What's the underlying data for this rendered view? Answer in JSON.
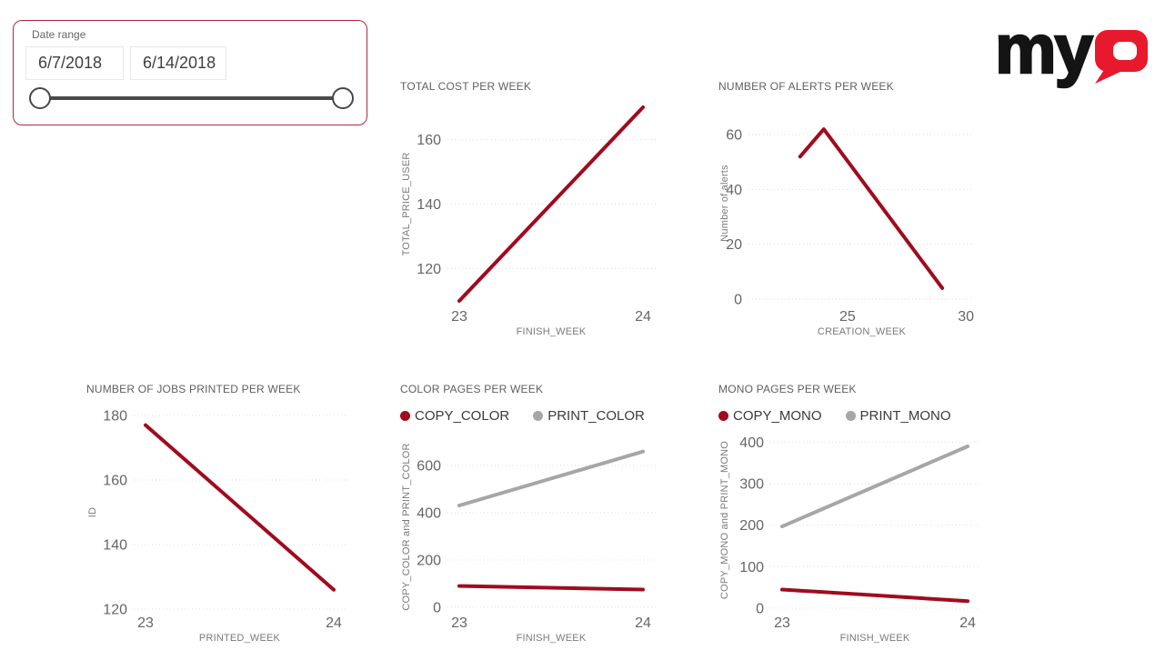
{
  "slicer": {
    "label": "Date range",
    "start_date": "6/7/2018",
    "end_date": "6/14/2018"
  },
  "logo": {
    "text": "my",
    "q": "Q"
  },
  "colors": {
    "accent_red": "#A00B1E",
    "series_gray": "#A6A6A6",
    "logo_red": "#E8192C",
    "logo_black": "#141414",
    "selection_border": "#B3293A",
    "gridline": "#DBDBDB",
    "tick_text": "#666666"
  },
  "chart_data": [
    {
      "id": "total-cost-per-week",
      "type": "line",
      "title": "TOTAL COST PER WEEK",
      "xlabel": "FINISH_WEEK",
      "ylabel": "TOTAL_PRICE_USER",
      "xlim": [
        23,
        24
      ],
      "ylim": [
        110,
        170
      ],
      "x_ticks": [
        23,
        24
      ],
      "y_ticks": [
        120,
        140,
        160
      ],
      "grid": "horizontal-dotted",
      "legend_position": null,
      "series": [
        {
          "name": "TOTAL_PRICE_USER",
          "color": "#A00B1E",
          "points": [
            [
              23,
              110
            ],
            [
              24,
              170
            ]
          ]
        }
      ]
    },
    {
      "id": "number-of-alerts-per-week",
      "type": "line",
      "title": "NUMBER OF ALERTS PER WEEK",
      "xlabel": "CREATION_WEEK",
      "ylabel": "Number of alerts",
      "xlim": [
        20.9,
        30.3
      ],
      "ylim": [
        0,
        70
      ],
      "x_ticks": [
        25,
        30
      ],
      "y_ticks": [
        0,
        20,
        40,
        60
      ],
      "grid": "horizontal-dotted",
      "legend_position": null,
      "series": [
        {
          "name": "Number of alerts",
          "color": "#A00B1E",
          "points": [
            [
              23,
              52
            ],
            [
              24,
              62
            ],
            [
              29,
              4
            ]
          ]
        }
      ]
    },
    {
      "id": "number-of-jobs-printed-per-week",
      "type": "line",
      "title": "NUMBER OF JOBS PRINTED PER WEEK",
      "xlabel": "PRINTED_WEEK",
      "ylabel": "ID",
      "xlim": [
        23,
        24
      ],
      "ylim": [
        120,
        180
      ],
      "x_ticks": [
        23,
        24
      ],
      "y_ticks": [
        120,
        140,
        160,
        180
      ],
      "grid": "horizontal-dotted",
      "legend_position": null,
      "series": [
        {
          "name": "ID",
          "color": "#A00B1E",
          "points": [
            [
              23,
              177
            ],
            [
              24,
              126
            ]
          ]
        }
      ]
    },
    {
      "id": "color-pages-per-week",
      "type": "line",
      "title": "COLOR PAGES PER WEEK",
      "xlabel": "FINISH_WEEK",
      "ylabel": "COPY_COLOR and PRINT_COLOR",
      "xlim": [
        23,
        24
      ],
      "ylim": [
        0,
        680
      ],
      "x_ticks": [
        23,
        24
      ],
      "y_ticks": [
        0,
        200,
        400,
        600
      ],
      "grid": "horizontal-dotted",
      "legend_position": "top",
      "series": [
        {
          "name": "COPY_COLOR",
          "color": "#A00B1E",
          "points": [
            [
              23,
              90
            ],
            [
              24,
              75
            ]
          ]
        },
        {
          "name": "PRINT_COLOR",
          "color": "#A6A6A6",
          "points": [
            [
              23,
              430
            ],
            [
              24,
              658
            ]
          ]
        }
      ]
    },
    {
      "id": "mono-pages-per-week",
      "type": "line",
      "title": "MONO PAGES PER WEEK",
      "xlabel": "FINISH_WEEK",
      "ylabel": "COPY_MONO and PRINT_MONO",
      "xlim": [
        23,
        24
      ],
      "ylim": [
        0,
        425
      ],
      "x_ticks": [
        23,
        24
      ],
      "y_ticks": [
        0,
        100,
        200,
        300,
        400
      ],
      "grid": "horizontal-dotted",
      "legend_position": "top",
      "series": [
        {
          "name": "COPY_MONO",
          "color": "#A00B1E",
          "points": [
            [
              23,
              45
            ],
            [
              24,
              17
            ]
          ]
        },
        {
          "name": "PRINT_MONO",
          "color": "#A6A6A6",
          "points": [
            [
              23,
              197
            ],
            [
              24,
              390
            ]
          ]
        }
      ]
    }
  ]
}
